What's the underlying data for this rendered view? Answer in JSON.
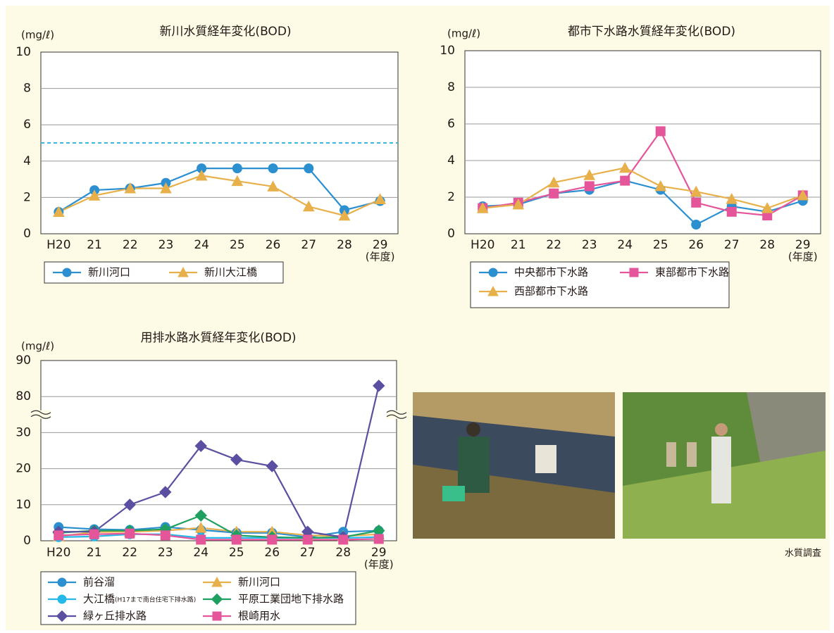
{
  "chart_data": [
    {
      "type": "line",
      "title": "新川水質経年変化(BOD)",
      "y_unit": "(mg/ℓ)",
      "x_unit": "(年度)",
      "categories": [
        "H20",
        "21",
        "22",
        "23",
        "24",
        "25",
        "26",
        "27",
        "28",
        "29"
      ],
      "ylim": [
        0,
        10
      ],
      "yticks": [
        0,
        2,
        4,
        6,
        8,
        10
      ],
      "grid": true,
      "reference_line": {
        "value": 5,
        "color": "#38b8e0",
        "style": "dashed"
      },
      "series": [
        {
          "name": "新川河口",
          "color": "#2b8fd0",
          "marker": "circle",
          "values": [
            1.2,
            2.4,
            2.5,
            2.8,
            3.6,
            3.6,
            3.6,
            3.6,
            1.3,
            1.8
          ]
        },
        {
          "name": "新川大江橋",
          "color": "#e8b04a",
          "marker": "triangle",
          "values": [
            1.2,
            2.1,
            2.5,
            2.5,
            3.2,
            2.9,
            2.6,
            1.5,
            1.0,
            1.9
          ]
        }
      ]
    },
    {
      "type": "line",
      "title": "都市下水路水質経年変化(BOD)",
      "y_unit": "(mg/ℓ)",
      "x_unit": "(年度)",
      "categories": [
        "H20",
        "21",
        "22",
        "23",
        "24",
        "25",
        "26",
        "27",
        "28",
        "29"
      ],
      "ylim": [
        0,
        10
      ],
      "yticks": [
        0,
        2,
        4,
        6,
        8,
        10
      ],
      "grid": true,
      "series": [
        {
          "name": "中央都市下水路",
          "color": "#2b8fd0",
          "marker": "circle",
          "values": [
            1.5,
            1.6,
            2.2,
            2.4,
            2.9,
            2.4,
            0.5,
            1.5,
            1.2,
            1.8
          ]
        },
        {
          "name": "東部都市下水路",
          "color": "#e4559a",
          "marker": "square",
          "values": [
            1.4,
            1.7,
            2.2,
            2.6,
            2.9,
            5.6,
            1.7,
            1.2,
            1.0,
            2.1
          ]
        },
        {
          "name": "西部都市下水路",
          "color": "#e8b04a",
          "marker": "triangle",
          "values": [
            1.4,
            1.6,
            2.8,
            3.2,
            3.6,
            2.6,
            2.3,
            1.9,
            1.4,
            2.1
          ]
        }
      ]
    },
    {
      "type": "line",
      "title": "用排水路水質経年変化(BOD)",
      "y_unit": "(mg/ℓ)",
      "x_unit": "(年度)",
      "categories": [
        "H20",
        "21",
        "22",
        "23",
        "24",
        "25",
        "26",
        "27",
        "28",
        "29"
      ],
      "ylim": [
        0,
        90
      ],
      "yticks": [
        0,
        10,
        20,
        30,
        80,
        90
      ],
      "grid": true,
      "axis_break": true,
      "series": [
        {
          "name": "前谷溜",
          "color": "#2b8fd0",
          "marker": "circle",
          "values": [
            3.8,
            3.2,
            3.0,
            3.8,
            3.0,
            2.2,
            2.2,
            1.0,
            2.5,
            2.8
          ]
        },
        {
          "name": "新川河口",
          "color": "#e8b04a",
          "marker": "triangle",
          "values": [
            1.2,
            2.4,
            2.5,
            2.8,
            3.6,
            2.5,
            2.5,
            1.5,
            1.3,
            1.8
          ]
        },
        {
          "name": "大江橋",
          "note": "(H17まで南台住宅下排水路)",
          "color": "#25b8e8",
          "marker": "circle",
          "values": [
            1.0,
            1.2,
            1.8,
            1.8,
            0.8,
            0.8,
            0.8,
            0.8,
            0.8,
            1.0
          ]
        },
        {
          "name": "平原工業団地下排水路",
          "color": "#20a060",
          "marker": "diamond",
          "values": [
            2.2,
            2.8,
            2.8,
            3.2,
            7.0,
            1.5,
            1.0,
            0.8,
            1.0,
            2.8
          ]
        },
        {
          "name": "緑ヶ丘排水路",
          "color": "#5a4fa0",
          "marker": "diamond",
          "values": [
            2.5,
            2.5,
            10.0,
            13.5,
            26.3,
            22.5,
            20.7,
            2.5,
            1.0,
            83
          ]
        },
        {
          "name": "根崎用水",
          "color": "#e4559a",
          "marker": "square",
          "values": [
            1.5,
            1.8,
            2.0,
            1.5,
            0.3,
            0.3,
            0.3,
            0.3,
            0.3,
            0.5
          ]
        }
      ]
    }
  ],
  "caption": "水質調査"
}
